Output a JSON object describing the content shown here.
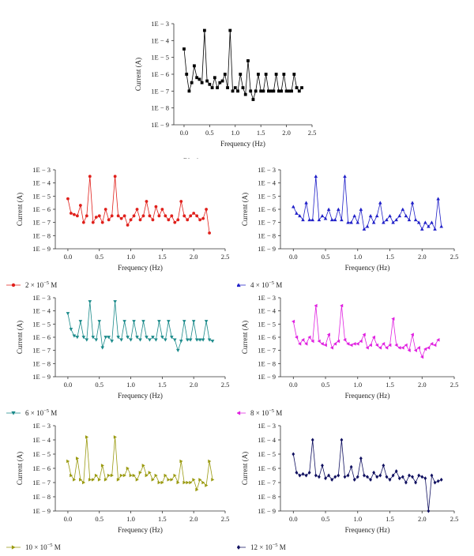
{
  "chart_data": [
    {
      "type": "line",
      "xlabel": "Frequency (Hz)",
      "ylabel": "Current (A)",
      "xlim": [
        -0.2,
        2.5
      ],
      "xticks": [
        "0.0",
        "0.5",
        "1.0",
        "1.5",
        "2.0",
        "2.5"
      ],
      "ylim_log10": [
        -9,
        -3
      ],
      "ytick_labels": [
        "1E − 3",
        "1E − 4",
        "1E − 5",
        "1E − 6",
        "1E − 7",
        "1E − 8",
        "1E − 9"
      ],
      "legend_placement": "bottom",
      "marker": "square",
      "color": "#000000",
      "series": [
        {
          "name": "Blank",
          "x": [
            0.0,
            0.05,
            0.1,
            0.15,
            0.2,
            0.25,
            0.3,
            0.35,
            0.4,
            0.45,
            0.5,
            0.55,
            0.6,
            0.65,
            0.7,
            0.75,
            0.8,
            0.85,
            0.9,
            0.95,
            1.0,
            1.05,
            1.1,
            1.15,
            1.2,
            1.25,
            1.3,
            1.35,
            1.4,
            1.45,
            1.5,
            1.55,
            1.6,
            1.65,
            1.7,
            1.75,
            1.8,
            1.85,
            1.9,
            1.95,
            2.0,
            2.05,
            2.1,
            2.15,
            2.2,
            2.25,
            2.3
          ],
          "log10_y": [
            -4.5,
            -6.0,
            -7.0,
            -6.5,
            -5.5,
            -6.2,
            -6.3,
            -6.5,
            -3.4,
            -6.4,
            -6.6,
            -6.8,
            -6.2,
            -6.8,
            -6.5,
            -6.4,
            -6.0,
            -6.8,
            -3.4,
            -7.0,
            -6.8,
            -7.0,
            -6.0,
            -6.8,
            -7.2,
            -5.2,
            -7.0,
            -7.5,
            -7.0,
            -6.0,
            -7.0,
            -7.0,
            -6.0,
            -7.0,
            -7.0,
            -7.0,
            -6.0,
            -7.0,
            -7.0,
            -6.0,
            -7.0,
            -7.0,
            -7.0,
            -6.0,
            -6.8,
            -7.0,
            -6.8
          ],
          "comment": ""
        }
      ]
    },
    {
      "type": "line",
      "xlabel": "Frequency (Hz)",
      "ylabel": "Current (A)",
      "xlim": [
        -0.2,
        2.5
      ],
      "xticks": [
        "0.0",
        "0.5",
        "1.0",
        "1.5",
        "2.0",
        "2.5"
      ],
      "ylim_log10": [
        -9,
        -3
      ],
      "ytick_labels": [
        "1E − 3",
        "1E − 4",
        "1E − 5",
        "1E − 6",
        "1E − 7",
        "1E − 8",
        "1E − 9"
      ],
      "legend_placement": "bottom",
      "marker": "circle",
      "color": "#e0201b",
      "series": [
        {
          "name": "2 × 10",
          "x": [
            0.0,
            0.05,
            0.1,
            0.15,
            0.2,
            0.25,
            0.3,
            0.35,
            0.4,
            0.45,
            0.5,
            0.55,
            0.6,
            0.65,
            0.7,
            0.75,
            0.8,
            0.85,
            0.9,
            0.95,
            1.0,
            1.05,
            1.1,
            1.15,
            1.2,
            1.25,
            1.3,
            1.35,
            1.4,
            1.45,
            1.5,
            1.55,
            1.6,
            1.65,
            1.7,
            1.75,
            1.8,
            1.85,
            1.9,
            1.95,
            2.0,
            2.05,
            2.1,
            2.15,
            2.2,
            2.25
          ],
          "log10_y": [
            -5.2,
            -6.3,
            -6.4,
            -6.5,
            -5.7,
            -7.0,
            -6.5,
            -3.5,
            -7.0,
            -6.6,
            -6.5,
            -7.0,
            -6.0,
            -6.8,
            -6.5,
            -3.5,
            -6.5,
            -6.7,
            -6.5,
            -7.2,
            -6.8,
            -6.5,
            -6.0,
            -6.8,
            -6.5,
            -5.4,
            -6.5,
            -6.8,
            -5.8,
            -6.5,
            -6.0,
            -6.5,
            -6.8,
            -6.5,
            -7.0,
            -6.8,
            -5.4,
            -6.5,
            -6.8,
            -6.5,
            -6.3,
            -6.5,
            -6.8,
            -6.7,
            -6.0,
            -7.8
          ],
          "comment": ""
        }
      ]
    },
    {
      "type": "line",
      "xlabel": "Frequency (Hz)",
      "ylabel": "Current (A)",
      "xlim": [
        -0.2,
        2.5
      ],
      "xticks": [
        "0.0",
        "0.5",
        "1.0",
        "1.5",
        "2.0",
        "2.5"
      ],
      "ylim_log10": [
        -9,
        -3
      ],
      "ytick_labels": [
        "1E − 3",
        "1E − 4",
        "1E − 5",
        "1E − 6",
        "1E − 7",
        "1E − 8",
        "1E − 9"
      ],
      "legend_placement": "bottom",
      "marker": "triangle-up",
      "color": "#1f1fc8",
      "series": [
        {
          "name": "4 × 10",
          "x": [
            0.0,
            0.05,
            0.1,
            0.15,
            0.2,
            0.25,
            0.3,
            0.35,
            0.4,
            0.45,
            0.5,
            0.55,
            0.6,
            0.65,
            0.7,
            0.75,
            0.8,
            0.85,
            0.9,
            0.95,
            1.0,
            1.05,
            1.1,
            1.15,
            1.2,
            1.25,
            1.3,
            1.35,
            1.4,
            1.45,
            1.5,
            1.55,
            1.6,
            1.65,
            1.7,
            1.75,
            1.8,
            1.85,
            1.9,
            1.95,
            2.0,
            2.05,
            2.1,
            2.15,
            2.2,
            2.25,
            2.3
          ],
          "log10_y": [
            -5.8,
            -6.3,
            -6.5,
            -6.8,
            -5.5,
            -6.8,
            -6.8,
            -3.5,
            -6.8,
            -6.5,
            -6.7,
            -6.0,
            -6.8,
            -6.8,
            -6.0,
            -6.8,
            -3.5,
            -7.0,
            -7.0,
            -6.5,
            -7.0,
            -6.0,
            -7.5,
            -7.3,
            -6.5,
            -7.0,
            -6.5,
            -5.5,
            -7.0,
            -6.8,
            -6.5,
            -7.0,
            -6.8,
            -6.5,
            -6.0,
            -6.5,
            -6.8,
            -5.5,
            -6.8,
            -7.0,
            -7.5,
            -7.0,
            -7.3,
            -7.0,
            -7.5,
            -5.2,
            -7.3
          ],
          "comment": ""
        }
      ]
    },
    {
      "type": "line",
      "xlabel": "Frequency (Hz)",
      "ylabel": "Current (A)",
      "xlim": [
        -0.2,
        2.5
      ],
      "xticks": [
        "0.0",
        "0.5",
        "1.0",
        "1.5",
        "2.0",
        "2.5"
      ],
      "ylim_log10": [
        -9,
        -3
      ],
      "ytick_labels": [
        "1E − 3",
        "1E − 4",
        "1E − 5",
        "1E − 6",
        "1E − 7",
        "1E − 8",
        "1E − 9"
      ],
      "legend_placement": "bottom",
      "marker": "triangle-down",
      "color": "#1a8a8a",
      "series": [
        {
          "name": "6 × 10",
          "x": [
            0.0,
            0.05,
            0.1,
            0.15,
            0.2,
            0.25,
            0.3,
            0.35,
            0.4,
            0.45,
            0.5,
            0.55,
            0.6,
            0.65,
            0.7,
            0.75,
            0.8,
            0.85,
            0.9,
            0.95,
            1.0,
            1.05,
            1.1,
            1.15,
            1.2,
            1.25,
            1.3,
            1.35,
            1.4,
            1.45,
            1.5,
            1.55,
            1.6,
            1.65,
            1.7,
            1.75,
            1.8,
            1.85,
            1.9,
            1.95,
            2.0,
            2.05,
            2.1,
            2.15,
            2.2,
            2.25,
            2.3
          ],
          "log10_y": [
            -4.2,
            -5.4,
            -5.9,
            -6.0,
            -4.8,
            -6.0,
            -6.2,
            -3.3,
            -6.0,
            -6.2,
            -4.8,
            -6.8,
            -6.0,
            -6.0,
            -6.3,
            -3.3,
            -6.0,
            -6.2,
            -4.8,
            -6.0,
            -6.2,
            -4.8,
            -6.0,
            -6.2,
            -4.8,
            -6.0,
            -6.2,
            -6.0,
            -6.2,
            -4.8,
            -6.0,
            -6.2,
            -4.8,
            -6.0,
            -6.2,
            -7.0,
            -6.3,
            -4.8,
            -6.2,
            -6.2,
            -4.8,
            -6.2,
            -6.2,
            -6.2,
            -4.8,
            -6.2,
            -6.3
          ],
          "comment": ""
        }
      ]
    },
    {
      "type": "line",
      "xlabel": "Frequency (Hz)",
      "ylabel": "Current (A)",
      "xlim": [
        -0.2,
        2.5
      ],
      "xticks": [
        "0.0",
        "0.5",
        "1.0",
        "1.5",
        "2.0",
        "2.5"
      ],
      "ylim_log10": [
        -9,
        -3
      ],
      "ytick_labels": [
        "1E − 3",
        "1E − 4",
        "1E − 5",
        "1E − 6",
        "1E − 7",
        "1E − 8",
        "1E − 9"
      ],
      "legend_placement": "bottom",
      "marker": "triangle-left",
      "color": "#e020e0",
      "series": [
        {
          "name": "8 × 10",
          "x": [
            0.0,
            0.05,
            0.1,
            0.15,
            0.2,
            0.25,
            0.3,
            0.35,
            0.4,
            0.45,
            0.5,
            0.55,
            0.6,
            0.65,
            0.7,
            0.75,
            0.8,
            0.85,
            0.9,
            0.95,
            1.0,
            1.05,
            1.1,
            1.15,
            1.2,
            1.25,
            1.3,
            1.35,
            1.4,
            1.45,
            1.5,
            1.55,
            1.6,
            1.65,
            1.7,
            1.75,
            1.8,
            1.85,
            1.9,
            1.95,
            2.0,
            2.05,
            2.1,
            2.15,
            2.2,
            2.25
          ],
          "log10_y": [
            -4.8,
            -6.0,
            -6.5,
            -6.2,
            -6.5,
            -6.0,
            -6.3,
            -3.6,
            -6.3,
            -6.5,
            -6.6,
            -5.8,
            -6.8,
            -6.5,
            -6.3,
            -3.6,
            -6.2,
            -6.5,
            -6.6,
            -6.5,
            -6.5,
            -6.3,
            -5.8,
            -6.8,
            -6.6,
            -6.0,
            -6.6,
            -6.8,
            -6.5,
            -6.8,
            -6.6,
            -4.6,
            -6.6,
            -6.8,
            -6.8,
            -6.6,
            -7.0,
            -5.8,
            -7.0,
            -6.8,
            -7.5,
            -6.9,
            -6.8,
            -6.5,
            -6.6,
            -6.2
          ],
          "comment": ""
        }
      ]
    },
    {
      "type": "line",
      "xlabel": "Frequency (Hz)",
      "ylabel": "Current (A)",
      "xlim": [
        -0.2,
        2.5
      ],
      "xticks": [
        "0.0",
        "0.5",
        "1.0",
        "1.5",
        "2.0",
        "2.5"
      ],
      "ylim_log10": [
        -9,
        -3
      ],
      "ytick_labels": [
        "1E − 3",
        "1E − 4",
        "1E − 5",
        "1E − 6",
        "1E − 7",
        "1E − 8",
        "1E − 9"
      ],
      "legend_placement": "bottom",
      "marker": "triangle-right",
      "color": "#9a9a10",
      "series": [
        {
          "name": "10 × 10",
          "x": [
            0.0,
            0.05,
            0.1,
            0.15,
            0.2,
            0.25,
            0.3,
            0.35,
            0.4,
            0.45,
            0.5,
            0.55,
            0.6,
            0.65,
            0.7,
            0.75,
            0.8,
            0.85,
            0.9,
            0.95,
            1.0,
            1.05,
            1.1,
            1.15,
            1.2,
            1.25,
            1.3,
            1.35,
            1.4,
            1.45,
            1.5,
            1.55,
            1.6,
            1.65,
            1.7,
            1.75,
            1.8,
            1.85,
            1.9,
            1.95,
            2.0,
            2.05,
            2.1,
            2.15,
            2.2,
            2.25,
            2.3
          ],
          "log10_y": [
            -5.5,
            -6.5,
            -6.8,
            -5.3,
            -6.8,
            -7.0,
            -3.8,
            -6.8,
            -6.8,
            -6.5,
            -6.8,
            -5.8,
            -6.8,
            -6.5,
            -6.5,
            -3.8,
            -6.8,
            -6.5,
            -6.5,
            -6.0,
            -6.5,
            -6.5,
            -6.8,
            -6.3,
            -5.8,
            -6.5,
            -6.3,
            -6.8,
            -6.5,
            -7.0,
            -7.0,
            -6.5,
            -6.8,
            -6.8,
            -6.5,
            -7.0,
            -5.5,
            -7.0,
            -7.0,
            -7.0,
            -6.8,
            -7.5,
            -6.8,
            -7.0,
            -7.2,
            -5.5,
            -6.8
          ],
          "comment": ""
        }
      ]
    },
    {
      "type": "line",
      "xlabel": "Frequency (Hz)",
      "ylabel": "Current (A)",
      "xlim": [
        -0.2,
        2.5
      ],
      "xticks": [
        "0.0",
        "0.5",
        "1.0",
        "1.5",
        "2.0",
        "2.5"
      ],
      "ylim_log10": [
        -9,
        -3
      ],
      "ytick_labels": [
        "1E − 3",
        "1E − 4",
        "1E − 5",
        "1E − 6",
        "1E − 7",
        "1E − 8",
        "1E − 9"
      ],
      "legend_placement": "bottom",
      "marker": "diamond",
      "color": "#101060",
      "series": [
        {
          "name": "12 × 10",
          "x": [
            0.0,
            0.05,
            0.1,
            0.15,
            0.2,
            0.25,
            0.3,
            0.35,
            0.4,
            0.45,
            0.5,
            0.55,
            0.6,
            0.65,
            0.7,
            0.75,
            0.8,
            0.85,
            0.9,
            0.95,
            1.0,
            1.05,
            1.1,
            1.15,
            1.2,
            1.25,
            1.3,
            1.35,
            1.4,
            1.45,
            1.5,
            1.55,
            1.6,
            1.65,
            1.7,
            1.75,
            1.8,
            1.85,
            1.9,
            1.95,
            2.0,
            2.05,
            2.1,
            2.15,
            2.2,
            2.25,
            2.3
          ],
          "log10_y": [
            -5.0,
            -6.3,
            -6.5,
            -6.4,
            -6.5,
            -6.3,
            -4.0,
            -6.5,
            -6.6,
            -5.8,
            -6.7,
            -6.5,
            -6.8,
            -6.6,
            -6.5,
            -4.0,
            -6.6,
            -6.5,
            -5.9,
            -6.8,
            -6.6,
            -5.3,
            -6.5,
            -6.6,
            -6.8,
            -6.3,
            -6.6,
            -6.5,
            -5.8,
            -6.6,
            -6.8,
            -6.5,
            -6.2,
            -6.7,
            -6.6,
            -7.0,
            -6.5,
            -6.6,
            -7.0,
            -6.5,
            -6.6,
            -6.7,
            -9.0,
            -6.5,
            -7.0,
            -6.9,
            -6.8
          ],
          "comment": ""
        }
      ]
    }
  ],
  "legend_exponent": "−5",
  "legend_unit": "M"
}
